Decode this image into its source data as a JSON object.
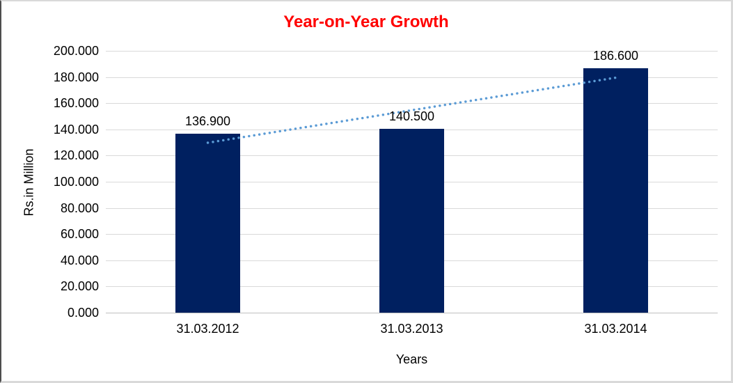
{
  "window": {
    "background": "#ffffff",
    "border_dark": "#4d4d4d",
    "border_light": "#d9d9d9"
  },
  "chart_data": {
    "type": "bar",
    "title": "Year-on-Year Growth",
    "title_color": "#ff0000",
    "xlabel": "Years",
    "ylabel": "Rs.in Million",
    "categories": [
      "31.03.2012",
      "31.03.2013",
      "31.03.2014"
    ],
    "values": [
      136.9,
      140.5,
      186.6
    ],
    "data_labels": [
      "136.900",
      "140.500",
      "186.600"
    ],
    "bar_color": "#002060",
    "ylim": [
      0,
      200
    ],
    "ytick_step": 20,
    "ytick_labels": [
      "0.000",
      "20.000",
      "40.000",
      "60.000",
      "80.000",
      "100.000",
      "120.000",
      "140.000",
      "160.000",
      "180.000",
      "200.000"
    ],
    "grid": true,
    "gridline_color": "#d9d9d9",
    "axis_line_color": "#bfbfbf",
    "legend": "none",
    "trendline": {
      "type": "linear",
      "style": "dotted",
      "color": "#5b9bd5",
      "start_value": 129.8,
      "end_value": 179.5
    }
  }
}
